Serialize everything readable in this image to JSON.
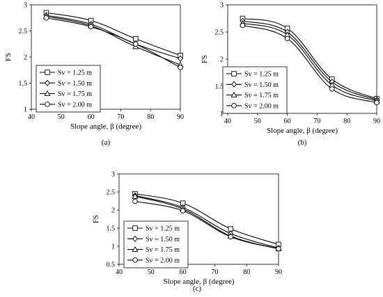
{
  "chart_data": [
    {
      "type": "line",
      "panel_label": "(a)",
      "xlabel": "Slope angle, β (degree)",
      "ylabel": "FS",
      "xlim": [
        40,
        90
      ],
      "ylim": [
        1,
        3
      ],
      "xticks": [
        40,
        50,
        60,
        70,
        80,
        90
      ],
      "yticks": [
        1,
        1.5,
        2,
        2.5,
        3
      ],
      "grid": false,
      "legend_position": "bottom-left",
      "x": [
        45,
        60,
        75,
        90
      ],
      "series": [
        {
          "name": "Sv = 1.25 m",
          "marker": "square",
          "values": [
            2.85,
            2.7,
            2.35,
            2.03
          ]
        },
        {
          "name": "Sv = 1.50 m",
          "marker": "diamond",
          "values": [
            2.8,
            2.63,
            2.25,
            1.97
          ]
        },
        {
          "name": "Sv = 1.75 m",
          "marker": "triangle",
          "values": [
            2.78,
            2.6,
            2.2,
            1.85
          ]
        },
        {
          "name": "Sv = 2.00 m",
          "marker": "circle",
          "values": [
            2.75,
            2.58,
            2.25,
            1.8
          ]
        }
      ]
    },
    {
      "type": "line",
      "panel_label": "(b)",
      "xlabel": "Slope angle, β (degree)",
      "ylabel": "FS",
      "xlim": [
        40,
        90
      ],
      "ylim": [
        1,
        3
      ],
      "xticks": [
        40,
        50,
        60,
        70,
        80,
        90
      ],
      "yticks": [
        1,
        1.5,
        2,
        2.5,
        3
      ],
      "grid": false,
      "legend_position": "bottom-left",
      "x": [
        45,
        60,
        75,
        90
      ],
      "series": [
        {
          "name": "Sv = 1.25 m",
          "marker": "square",
          "values": [
            2.75,
            2.57,
            1.63,
            1.27
          ]
        },
        {
          "name": "Sv = 1.50 m",
          "marker": "diamond",
          "values": [
            2.7,
            2.5,
            1.58,
            1.25
          ]
        },
        {
          "name": "Sv = 1.75 m",
          "marker": "triangle",
          "values": [
            2.66,
            2.45,
            1.52,
            1.23
          ]
        },
        {
          "name": "Sv = 2.00 m",
          "marker": "circle",
          "values": [
            2.62,
            2.38,
            1.45,
            1.2
          ]
        }
      ]
    },
    {
      "type": "line",
      "panel_label": "(c)",
      "xlabel": "Slope angle, β (degree)",
      "ylabel": "FS",
      "xlim": [
        40,
        90
      ],
      "ylim": [
        0.5,
        3
      ],
      "xticks": [
        40,
        50,
        60,
        70,
        80,
        90
      ],
      "yticks": [
        0.5,
        1,
        1.5,
        2,
        2.5,
        3
      ],
      "grid": false,
      "legend_position": "bottom-left",
      "x": [
        45,
        60,
        75,
        90
      ],
      "series": [
        {
          "name": "Sv = 1.25 m",
          "marker": "square",
          "values": [
            2.45,
            2.19,
            1.48,
            1.05
          ]
        },
        {
          "name": "Sv = 1.50 m",
          "marker": "diamond",
          "values": [
            2.4,
            2.07,
            1.35,
            0.95
          ]
        },
        {
          "name": "Sv = 1.75 m",
          "marker": "triangle",
          "values": [
            2.38,
            2.03,
            1.28,
            0.93
          ]
        },
        {
          "name": "Sv = 2.00 m",
          "marker": "circle",
          "values": [
            2.24,
            1.98,
            1.26,
            0.93
          ]
        }
      ]
    }
  ]
}
